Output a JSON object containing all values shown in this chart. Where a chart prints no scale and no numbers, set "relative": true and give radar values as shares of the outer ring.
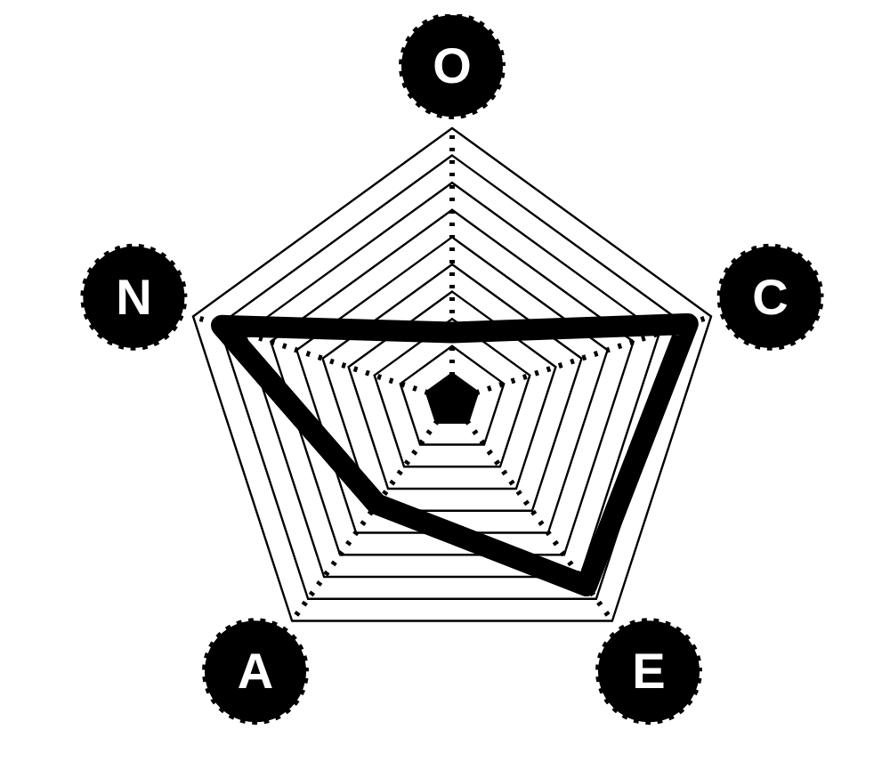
{
  "chart_data": {
    "type": "radar",
    "relative": true,
    "categories": [
      "O",
      "C",
      "E",
      "A",
      "N"
    ],
    "series": [
      {
        "color": "#000000",
        "values": [
          0.25,
          0.91,
          0.84,
          0.47,
          0.89
        ]
      }
    ],
    "grid": true,
    "legend": false,
    "marker": "none",
    "line_style": "solid"
  }
}
